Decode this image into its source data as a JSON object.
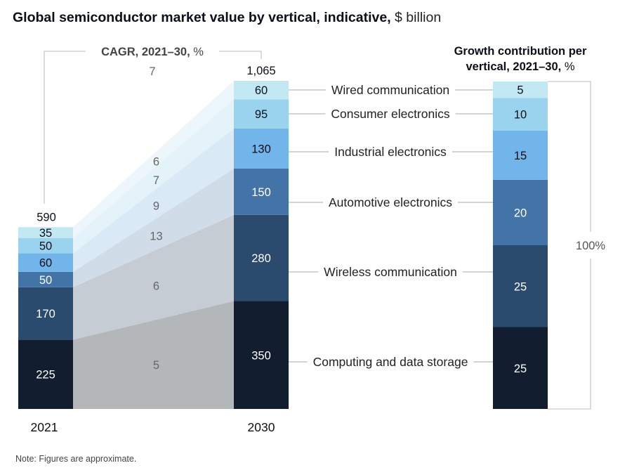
{
  "title": {
    "main": "Global semiconductor market value by vertical, indicative,",
    "unit": "$ billion"
  },
  "note": "Note: Figures are approximate.",
  "chart_data": {
    "type": "stacked_bar",
    "title": "Global semiconductor market value by vertical, indicative, $ billion",
    "years": [
      "2021",
      "2030"
    ],
    "totals": [
      "590",
      "1,065"
    ],
    "cagr_label": "CAGR, 2021–30,",
    "cagr_unit": "%",
    "contribution_title_line1": "Growth contribution per",
    "contribution_title_line2": "vertical, 2021–30,",
    "contribution_unit": "%",
    "contribution_total": "100%",
    "series": [
      {
        "name": "Computing and data storage",
        "v2021": 225,
        "v2030": 350,
        "cagr": 5,
        "contribution": 25,
        "color": "#121e30",
        "band": "#b4b7ba",
        "text": "#ffffff"
      },
      {
        "name": "Wireless communication",
        "v2021": 170,
        "v2030": 280,
        "cagr": 6,
        "contribution": 25,
        "color": "#2a4a6e",
        "band": "#c5ccd3",
        "text": "#ffffff"
      },
      {
        "name": "Automotive electronics",
        "v2021": 50,
        "v2030": 150,
        "cagr": 13,
        "contribution": 20,
        "color": "#4274a8",
        "band": "#d0dce7",
        "text": "#ffffff"
      },
      {
        "name": "Industrial electronics",
        "v2021": 60,
        "v2030": 130,
        "cagr": 9,
        "contribution": 15,
        "color": "#72b5ea",
        "band": "#d9e9f6",
        "text": "#0b0f1a"
      },
      {
        "name": "Consumer electronics",
        "v2021": 50,
        "v2030": 95,
        "cagr": 7,
        "contribution": 10,
        "color": "#9ad3ee",
        "band": "#e4f2f9",
        "text": "#0b0f1a"
      },
      {
        "name": "Wired communication",
        "v2021": 35,
        "v2030": 60,
        "cagr": 6,
        "contribution": 5,
        "color": "#c2e8f3",
        "band": "#edf6fa",
        "text": "#0b0f1a"
      }
    ],
    "cagr_overall": 7
  }
}
